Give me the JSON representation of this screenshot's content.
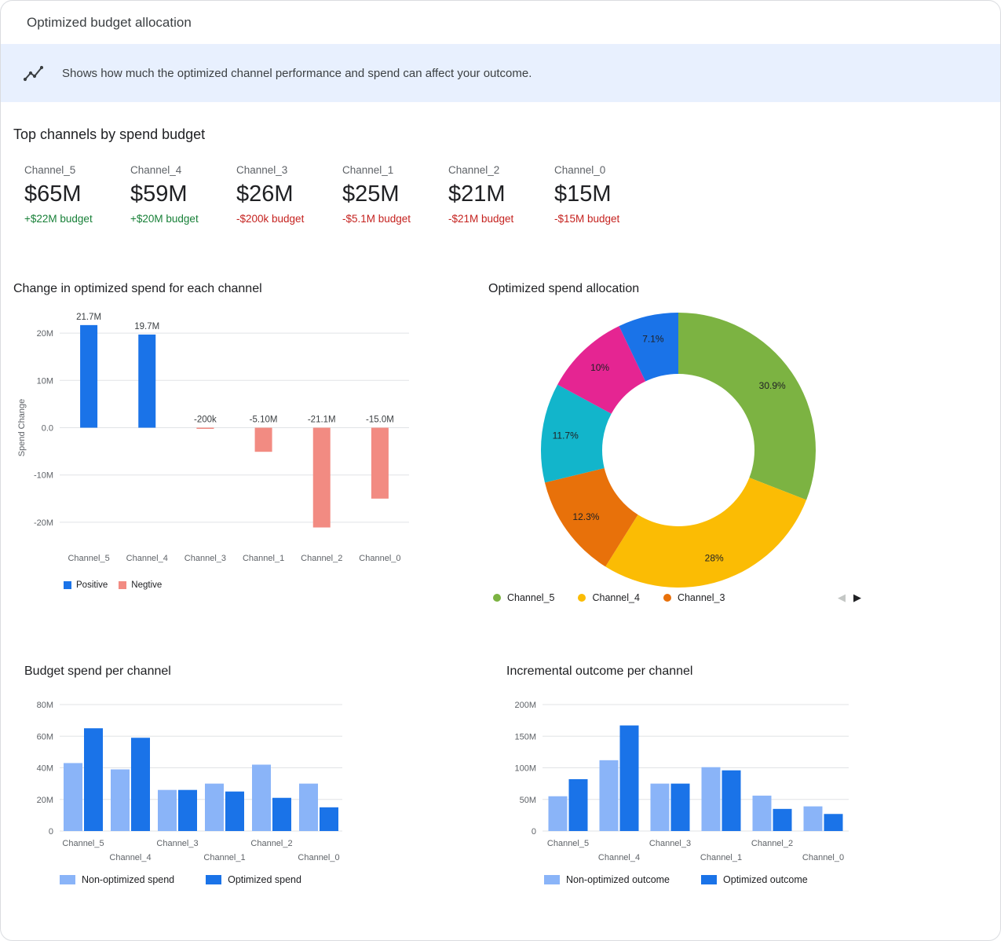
{
  "window": {
    "title": "Optimized budget allocation"
  },
  "banner": {
    "icon": "insights-icon",
    "text": "Shows how much the optimized channel performance and spend can affect your outcome."
  },
  "top_channels": {
    "heading": "Top channels by spend budget",
    "cards": [
      {
        "name": "Channel_5",
        "value": "$65M",
        "delta": "+$22M budget",
        "direction": "up"
      },
      {
        "name": "Channel_4",
        "value": "$59M",
        "delta": "+$20M budget",
        "direction": "up"
      },
      {
        "name": "Channel_3",
        "value": "$26M",
        "delta": "-$200k budget",
        "direction": "down"
      },
      {
        "name": "Channel_1",
        "value": "$25M",
        "delta": "-$5.1M budget",
        "direction": "down"
      },
      {
        "name": "Channel_2",
        "value": "$21M",
        "delta": "-$21M budget",
        "direction": "down"
      },
      {
        "name": "Channel_0",
        "value": "$15M",
        "delta": "-$15M budget",
        "direction": "down"
      }
    ]
  },
  "pagination": {
    "prev": "◀",
    "next": "▶"
  },
  "chart_data": [
    {
      "id": "spend_change",
      "type": "bar",
      "title": "Change in optimized spend for each channel",
      "categories": [
        "Channel_5",
        "Channel_4",
        "Channel_3",
        "Channel_1",
        "Channel_2",
        "Channel_0"
      ],
      "values_m": [
        21.7,
        19.7,
        -0.2,
        -5.1,
        -21.1,
        -15.0
      ],
      "bar_labels": [
        "21.7M",
        "19.7M",
        "-200k",
        "-5.10M",
        "-21.1M",
        "-15.0M"
      ],
      "ylabel": "Spend Change",
      "ylim": [
        -25,
        25
      ],
      "yticks": [
        {
          "v": 20,
          "label": "20M"
        },
        {
          "v": 10,
          "label": "10M"
        },
        {
          "v": 0,
          "label": "0.0"
        },
        {
          "v": -10,
          "label": "-10M"
        },
        {
          "v": -20,
          "label": "-20M"
        }
      ],
      "legend": [
        {
          "label": "Positive",
          "color": "#1a73e8"
        },
        {
          "label": "Negtive",
          "color": "#f28b82"
        }
      ]
    },
    {
      "id": "spend_allocation",
      "type": "pie",
      "title": "Optimized spend allocation",
      "slices": [
        {
          "value": 30.9,
          "label": "30.9%",
          "color": "#7cb342"
        },
        {
          "value": 28,
          "label": "28%",
          "color": "#fbbc04"
        },
        {
          "value": 12.3,
          "label": "12.3%",
          "color": "#e8710a"
        },
        {
          "value": 11.7,
          "label": "11.7%",
          "color": "#12b5cb"
        },
        {
          "value": 10,
          "label": "10%",
          "color": "#e52592"
        },
        {
          "value": 7.1,
          "label": "7.1%",
          "color": "#1a73e8"
        }
      ],
      "legend": [
        {
          "label": "Channel_5",
          "color": "#7cb342"
        },
        {
          "label": "Channel_4",
          "color": "#fbbc04"
        },
        {
          "label": "Channel_3",
          "color": "#e8710a"
        }
      ]
    },
    {
      "id": "budget_spend",
      "type": "bar",
      "title": "Budget spend per channel",
      "categories": [
        "Channel_5",
        "Channel_4",
        "Channel_3",
        "Channel_1",
        "Channel_2",
        "Channel_0"
      ],
      "series": [
        {
          "name": "Non-optimized spend",
          "color": "#8ab4f8",
          "values_m": [
            43,
            39,
            26,
            30,
            42,
            30
          ]
        },
        {
          "name": "Optimized spend",
          "color": "#1a73e8",
          "values_m": [
            65,
            59,
            26,
            25,
            21,
            15
          ]
        }
      ],
      "ylim": [
        0,
        80
      ],
      "yticks": [
        {
          "v": 0,
          "label": "0"
        },
        {
          "v": 20,
          "label": "20M"
        },
        {
          "v": 40,
          "label": "40M"
        },
        {
          "v": 60,
          "label": "60M"
        },
        {
          "v": 80,
          "label": "80M"
        }
      ]
    },
    {
      "id": "incremental_outcome",
      "type": "bar",
      "title": "Incremental outcome per channel",
      "categories": [
        "Channel_5",
        "Channel_4",
        "Channel_3",
        "Channel_1",
        "Channel_2",
        "Channel_0"
      ],
      "series": [
        {
          "name": "Non-optimized outcome",
          "color": "#8ab4f8",
          "values_m": [
            55,
            112,
            75,
            101,
            56,
            39
          ]
        },
        {
          "name": "Optimized outcome",
          "color": "#1a73e8",
          "values_m": [
            82,
            167,
            75,
            96,
            35,
            27
          ]
        }
      ],
      "ylim": [
        0,
        200
      ],
      "yticks": [
        {
          "v": 0,
          "label": "0"
        },
        {
          "v": 50,
          "label": "50M"
        },
        {
          "v": 100,
          "label": "100M"
        },
        {
          "v": 150,
          "label": "150M"
        },
        {
          "v": 200,
          "label": "200M"
        }
      ]
    }
  ]
}
